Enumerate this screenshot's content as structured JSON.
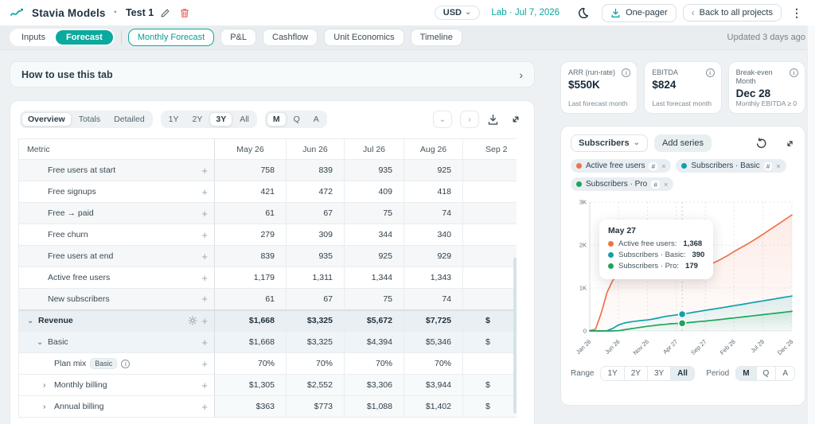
{
  "header": {
    "app_name": "Stavia Models",
    "separator": "·",
    "project_name": "Test 1",
    "currency": "USD",
    "mode_date": "Lab · Jul 7, 2026",
    "one_pager_label": "One-pager",
    "back_chevron": "‹",
    "back_label": "Back to all projects"
  },
  "glyphs": {
    "kebab": "⋮",
    "chevron_down_small": "⌄",
    "chevron_right": "›",
    "dropdown_arrow": "⌄",
    "plus": "+",
    "hash": "#",
    "close": "×",
    "info": "i"
  },
  "nav": {
    "segment_tabs": [
      {
        "label": "Inputs",
        "active": false
      },
      {
        "label": "Forecast",
        "active": true
      }
    ],
    "pill_tabs": [
      {
        "label": "Monthly Forecast",
        "outlined": true
      },
      {
        "label": "P&L",
        "outlined": false
      },
      {
        "label": "Cashflow",
        "outlined": false
      },
      {
        "label": "Unit Economics",
        "outlined": false
      },
      {
        "label": "Timeline",
        "outlined": false
      }
    ],
    "updated": "Updated 3 days ago"
  },
  "howto": {
    "label": "How to use this tab"
  },
  "table_card": {
    "view_tabs": [
      "Overview",
      "Totals",
      "Detailed"
    ],
    "view_selected": "Overview",
    "range_tabs": [
      "1Y",
      "2Y",
      "3Y",
      "All"
    ],
    "range_selected": "3Y",
    "period_tabs": [
      "M",
      "Q",
      "A"
    ],
    "period_selected": "M",
    "table": {
      "columns": [
        "Metric",
        "May 26",
        "Jun 26",
        "Jul 26",
        "Aug 26",
        "Sep 2"
      ],
      "rows": [
        {
          "label": "Free users at start",
          "level": 2,
          "values": [
            "758",
            "839",
            "935",
            "925",
            ""
          ],
          "style": "alt"
        },
        {
          "label": "Free signups",
          "level": 2,
          "values": [
            "421",
            "472",
            "409",
            "418",
            ""
          ],
          "style": ""
        },
        {
          "label": "Free → paid",
          "level": 2,
          "values": [
            "61",
            "67",
            "75",
            "74",
            ""
          ],
          "style": "alt"
        },
        {
          "label": "Free churn",
          "level": 2,
          "values": [
            "279",
            "309",
            "344",
            "340",
            ""
          ],
          "style": ""
        },
        {
          "label": "Free users at end",
          "level": 2,
          "values": [
            "839",
            "935",
            "925",
            "929",
            ""
          ],
          "style": "alt"
        },
        {
          "label": "Active free users",
          "level": 2,
          "values": [
            "1,179",
            "1,311",
            "1,344",
            "1,343",
            ""
          ],
          "style": ""
        },
        {
          "label": "New subscribers",
          "level": 2,
          "values": [
            "61",
            "67",
            "75",
            "74",
            ""
          ],
          "style": "alt"
        },
        {
          "label": "Revenue",
          "level": 0,
          "chevron": "down",
          "gear": true,
          "values": [
            "$1,668",
            "$3,325",
            "$5,672",
            "$7,725",
            "$"
          ],
          "style": "section"
        },
        {
          "label": "Basic",
          "level": 1,
          "chevron": "down",
          "values": [
            "$1,668",
            "$3,325",
            "$4,394",
            "$5,346",
            "$"
          ],
          "style": "sub"
        },
        {
          "label": "Plan mix",
          "level": 3,
          "badge": "Basic",
          "info": true,
          "values": [
            "70%",
            "70%",
            "70%",
            "70%",
            ""
          ],
          "style": ""
        },
        {
          "label": "Monthly billing",
          "level": 2,
          "chevron": "right",
          "values": [
            "$1,305",
            "$2,552",
            "$3,306",
            "$3,944",
            "$"
          ],
          "style": "rev"
        },
        {
          "label": "Annual billing",
          "level": 2,
          "chevron": "right",
          "values": [
            "$363",
            "$773",
            "$1,088",
            "$1,402",
            "$"
          ],
          "style": "rev"
        }
      ]
    }
  },
  "kpis": [
    {
      "label": "ARR (run-rate)",
      "value": "$550K",
      "footer": "Last forecast month"
    },
    {
      "label": "EBITDA",
      "value": "$824",
      "footer": "Last forecast month"
    },
    {
      "label": "Break-even Month",
      "value": "Dec 28",
      "footer": "Monthly EBITDA ≥ 0"
    }
  ],
  "chart_panel": {
    "metric_selector": "Subscribers",
    "add_series_label": "Add series",
    "legend_chips": [
      {
        "label": "Active free users",
        "color": "#f2714b"
      },
      {
        "label": "Subscribers · Basic",
        "color": "#12a0aa"
      },
      {
        "label": "Subscribers · Pro",
        "color": "#1ca65b"
      }
    ],
    "range_label": "Range",
    "range_tabs": [
      "1Y",
      "2Y",
      "3Y",
      "All"
    ],
    "range_selected": "All",
    "period_label": "Period",
    "period_tabs": [
      "M",
      "Q",
      "A"
    ],
    "period_selected": "M"
  },
  "chart_data": {
    "type": "line",
    "title": "Subscribers",
    "ylim": [
      0,
      3000
    ],
    "y_ticks": [
      {
        "value": 0,
        "label": "0"
      },
      {
        "value": 1000,
        "label": "1K"
      },
      {
        "value": 2000,
        "label": "2K"
      },
      {
        "value": 3000,
        "label": "3K"
      }
    ],
    "x_months": 36,
    "x_tick_indices": [
      0,
      5,
      10,
      15,
      20,
      25,
      30,
      35
    ],
    "x_tick_labels": [
      "Jan 26",
      "Jun 26",
      "Nov 26",
      "Apr 27",
      "Sep 27",
      "Feb 28",
      "Jul 28",
      "Dec 28"
    ],
    "grid": true,
    "legend_position": "top",
    "series": [
      {
        "name": "Active free users",
        "color": "#f2714b",
        "values": [
          10,
          40,
          420,
          900,
          1179,
          1311,
          1344,
          1343,
          1345,
          1348,
          1350,
          1352,
          1355,
          1360,
          1363,
          1366,
          1368,
          1400,
          1440,
          1470,
          1500,
          1560,
          1620,
          1690,
          1765,
          1850,
          1925,
          2000,
          2080,
          2165,
          2250,
          2340,
          2430,
          2520,
          2610,
          2700
        ]
      },
      {
        "name": "Subscribers · Basic",
        "color": "#12a0aa",
        "values": [
          0,
          0,
          0,
          5,
          60,
          140,
          185,
          210,
          228,
          243,
          255,
          278,
          305,
          335,
          355,
          372,
          390,
          412,
          435,
          458,
          480,
          500,
          520,
          542,
          565,
          588,
          610,
          632,
          655,
          678,
          700,
          722,
          745,
          768,
          790,
          812
        ]
      },
      {
        "name": "Subscribers · Pro",
        "color": "#1ca65b",
        "values": [
          0,
          0,
          0,
          0,
          0,
          5,
          28,
          48,
          68,
          88,
          108,
          124,
          140,
          152,
          166,
          172,
          179,
          192,
          205,
          218,
          230,
          245,
          258,
          272,
          288,
          302,
          318,
          333,
          348,
          364,
          380,
          395,
          410,
          425,
          440,
          455
        ]
      }
    ],
    "hover_index": 16,
    "tooltip": {
      "title": "May 27",
      "rows": [
        {
          "label": "Active free users",
          "value": "1,368",
          "color": "#f2714b"
        },
        {
          "label": "Subscribers · Basic",
          "value": "390",
          "color": "#12a0aa"
        },
        {
          "label": "Subscribers · Pro",
          "value": "179",
          "color": "#1ca65b"
        }
      ],
      "marker_series": [
        1,
        2
      ]
    }
  }
}
